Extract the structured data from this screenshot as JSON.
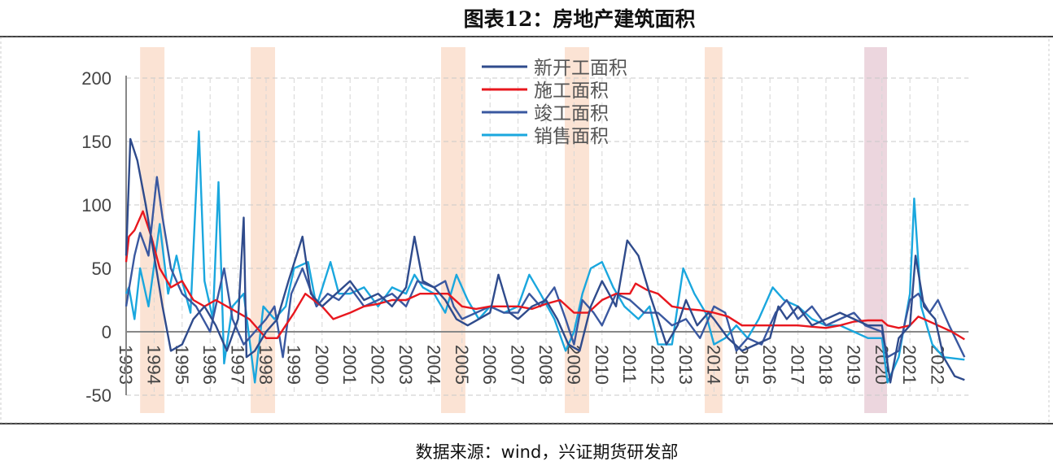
{
  "title": "图表12：房地产建筑面积",
  "source": "数据来源：wind，兴证期货研发部",
  "chart_data": {
    "type": "line",
    "title": "图表12：房地产建筑面积",
    "xlim": [
      1993,
      2022.95
    ],
    "ylim": [
      -50,
      200
    ],
    "yticks": [
      200,
      150,
      100,
      50,
      0,
      -50
    ],
    "xticks": [
      "1993",
      "1994",
      "1995",
      "1996",
      "1997",
      "1998",
      "1999",
      "2000",
      "2001",
      "2002",
      "2003",
      "2004",
      "2005",
      "2006",
      "2007",
      "2008",
      "2009",
      "2010",
      "2011",
      "2012",
      "2013",
      "2014",
      "2015",
      "2016",
      "2017",
      "2018",
      "2019",
      "2020",
      "2021",
      "2022"
    ],
    "grid": true,
    "legend_position": "top-center",
    "shaded_periods": [
      {
        "from": 1993.5,
        "to": 1994.37,
        "color": "#fbe3d4"
      },
      {
        "from": 1997.45,
        "to": 1998.32,
        "color": "#fbe3d4"
      },
      {
        "from": 2004.25,
        "to": 2005.12,
        "color": "#fbe3d4"
      },
      {
        "from": 2008.67,
        "to": 2009.54,
        "color": "#fbe3d4"
      },
      {
        "from": 2013.67,
        "to": 2014.3,
        "color": "#fbe3d4"
      },
      {
        "from": 2019.37,
        "to": 2020.18,
        "color": "#ecd6de"
      }
    ],
    "series": [
      {
        "name": "新开工面积",
        "color": "#2f4b8c",
        "points": [
          [
            1993,
            60
          ],
          [
            1993.15,
            152
          ],
          [
            1993.4,
            135
          ],
          [
            1993.7,
            100
          ],
          [
            1994,
            60
          ],
          [
            1994.3,
            20
          ],
          [
            1994.6,
            -15
          ],
          [
            1995,
            -10
          ],
          [
            1995.4,
            10
          ],
          [
            1995.8,
            20
          ],
          [
            1996.2,
            5
          ],
          [
            1996.6,
            -15
          ],
          [
            1997,
            10
          ],
          [
            1997.2,
            90
          ],
          [
            1997.3,
            -20
          ],
          [
            1997.6,
            -15
          ],
          [
            1998,
            0
          ],
          [
            1998.4,
            10
          ],
          [
            1998.8,
            40
          ],
          [
            1999.3,
            75
          ],
          [
            1999.6,
            30
          ],
          [
            2000,
            20
          ],
          [
            2000.5,
            30
          ],
          [
            2001,
            40
          ],
          [
            2001.5,
            25
          ],
          [
            2002,
            30
          ],
          [
            2002.5,
            20
          ],
          [
            2003,
            35
          ],
          [
            2003.3,
            75
          ],
          [
            2003.6,
            40
          ],
          [
            2004,
            35
          ],
          [
            2004.4,
            25
          ],
          [
            2004.8,
            10
          ],
          [
            2005.2,
            5
          ],
          [
            2005.6,
            10
          ],
          [
            2006,
            15
          ],
          [
            2006.3,
            45
          ],
          [
            2006.7,
            15
          ],
          [
            2007,
            10
          ],
          [
            2007.5,
            20
          ],
          [
            2008,
            25
          ],
          [
            2008.4,
            10
          ],
          [
            2008.8,
            -10
          ],
          [
            2009.2,
            -15
          ],
          [
            2009.6,
            20
          ],
          [
            2010,
            40
          ],
          [
            2010.5,
            20
          ],
          [
            2010.9,
            72
          ],
          [
            2011.3,
            60
          ],
          [
            2011.7,
            30
          ],
          [
            2012,
            10
          ],
          [
            2012.3,
            -10
          ],
          [
            2012.7,
            5
          ],
          [
            2013,
            25
          ],
          [
            2013.4,
            5
          ],
          [
            2013.8,
            15
          ],
          [
            2014,
            10
          ],
          [
            2014.5,
            -5
          ],
          [
            2015,
            -15
          ],
          [
            2015.5,
            -10
          ],
          [
            2016,
            -5
          ],
          [
            2016.3,
            20
          ],
          [
            2016.6,
            10
          ],
          [
            2017,
            20
          ],
          [
            2017.5,
            5
          ],
          [
            2018,
            10
          ],
          [
            2018.5,
            15
          ],
          [
            2019,
            10
          ],
          [
            2019.5,
            5
          ],
          [
            2020,
            5
          ],
          [
            2020.3,
            -40
          ],
          [
            2020.6,
            -5
          ],
          [
            2021,
            5
          ],
          [
            2021.2,
            60
          ],
          [
            2021.5,
            20
          ],
          [
            2021.9,
            10
          ],
          [
            2022.2,
            -20
          ],
          [
            2022.6,
            -35
          ],
          [
            2022.95,
            -38
          ]
        ]
      },
      {
        "name": "施工面积",
        "color": "#e8171e",
        "points": [
          [
            1993,
            55
          ],
          [
            1993.1,
            75
          ],
          [
            1993.3,
            80
          ],
          [
            1993.6,
            95
          ],
          [
            1993.9,
            75
          ],
          [
            1994.2,
            50
          ],
          [
            1994.6,
            35
          ],
          [
            1995,
            40
          ],
          [
            1995.4,
            25
          ],
          [
            1995.8,
            20
          ],
          [
            1996.2,
            25
          ],
          [
            1996.6,
            20
          ],
          [
            1997,
            15
          ],
          [
            1997.4,
            10
          ],
          [
            1997.8,
            0
          ],
          [
            1998,
            -5
          ],
          [
            1998.4,
            -5
          ],
          [
            1998.7,
            5
          ],
          [
            1999,
            15
          ],
          [
            1999.4,
            30
          ],
          [
            2000,
            20
          ],
          [
            2000.4,
            10
          ],
          [
            2001,
            15
          ],
          [
            2001.5,
            20
          ],
          [
            2002,
            22
          ],
          [
            2002.5,
            25
          ],
          [
            2003,
            25
          ],
          [
            2003.5,
            30
          ],
          [
            2004,
            30
          ],
          [
            2004.5,
            30
          ],
          [
            2005,
            20
          ],
          [
            2005.5,
            18
          ],
          [
            2006,
            20
          ],
          [
            2006.5,
            20
          ],
          [
            2007,
            20
          ],
          [
            2007.5,
            18
          ],
          [
            2008,
            22
          ],
          [
            2008.5,
            25
          ],
          [
            2009,
            15
          ],
          [
            2009.5,
            15
          ],
          [
            2010,
            25
          ],
          [
            2010.5,
            30
          ],
          [
            2011,
            30
          ],
          [
            2011.2,
            38
          ],
          [
            2011.6,
            33
          ],
          [
            2012,
            30
          ],
          [
            2012.5,
            20
          ],
          [
            2013,
            18
          ],
          [
            2013.5,
            17
          ],
          [
            2014,
            15
          ],
          [
            2014.5,
            12
          ],
          [
            2015,
            5
          ],
          [
            2015.5,
            5
          ],
          [
            2016,
            5
          ],
          [
            2016.5,
            5
          ],
          [
            2017,
            5
          ],
          [
            2017.5,
            4
          ],
          [
            2018,
            3
          ],
          [
            2018.5,
            5
          ],
          [
            2019,
            8
          ],
          [
            2019.5,
            9
          ],
          [
            2020,
            9
          ],
          [
            2020.2,
            5
          ],
          [
            2020.6,
            3
          ],
          [
            2021,
            5
          ],
          [
            2021.3,
            12
          ],
          [
            2021.7,
            8
          ],
          [
            2022,
            5
          ],
          [
            2022.5,
            0
          ],
          [
            2022.95,
            -6
          ]
        ]
      },
      {
        "name": "竣工面积",
        "color": "#3a58a0",
        "points": [
          [
            1993,
            20
          ],
          [
            1993.3,
            60
          ],
          [
            1993.5,
            78
          ],
          [
            1993.8,
            60
          ],
          [
            1994.1,
            122
          ],
          [
            1994.3,
            90
          ],
          [
            1994.6,
            50
          ],
          [
            1995,
            30
          ],
          [
            1995.5,
            20
          ],
          [
            1996,
            0
          ],
          [
            1996.5,
            50
          ],
          [
            1996.8,
            10
          ],
          [
            1997.2,
            -10
          ],
          [
            1997.6,
            0
          ],
          [
            1998,
            10
          ],
          [
            1998.3,
            20
          ],
          [
            1998.6,
            -20
          ],
          [
            1998.9,
            30
          ],
          [
            1999.3,
            50
          ],
          [
            1999.8,
            20
          ],
          [
            2000.2,
            30
          ],
          [
            2000.6,
            25
          ],
          [
            2001,
            35
          ],
          [
            2001.5,
            20
          ],
          [
            2002,
            25
          ],
          [
            2002.5,
            30
          ],
          [
            2003,
            20
          ],
          [
            2003.4,
            40
          ],
          [
            2004,
            35
          ],
          [
            2004.4,
            40
          ],
          [
            2004.7,
            20
          ],
          [
            2005,
            10
          ],
          [
            2005.5,
            15
          ],
          [
            2006,
            20
          ],
          [
            2006.5,
            15
          ],
          [
            2007,
            15
          ],
          [
            2007.4,
            30
          ],
          [
            2007.8,
            20
          ],
          [
            2008.3,
            35
          ],
          [
            2008.7,
            10
          ],
          [
            2009,
            -10
          ],
          [
            2009.3,
            25
          ],
          [
            2009.7,
            15
          ],
          [
            2010,
            5
          ],
          [
            2010.5,
            30
          ],
          [
            2011,
            25
          ],
          [
            2011.5,
            15
          ],
          [
            2012,
            15
          ],
          [
            2012.5,
            5
          ],
          [
            2013,
            10
          ],
          [
            2013.5,
            -5
          ],
          [
            2014,
            20
          ],
          [
            2014.4,
            15
          ],
          [
            2014.8,
            -15
          ],
          [
            2015.2,
            -5
          ],
          [
            2015.7,
            -10
          ],
          [
            2016.2,
            15
          ],
          [
            2016.6,
            25
          ],
          [
            2017,
            10
          ],
          [
            2017.5,
            20
          ],
          [
            2018,
            5
          ],
          [
            2018.5,
            10
          ],
          [
            2019,
            15
          ],
          [
            2019.4,
            5
          ],
          [
            2020,
            0
          ],
          [
            2020.2,
            -20
          ],
          [
            2020.6,
            -15
          ],
          [
            2021,
            25
          ],
          [
            2021.3,
            30
          ],
          [
            2021.7,
            15
          ],
          [
            2022,
            25
          ],
          [
            2022.4,
            5
          ],
          [
            2022.95,
            -20
          ]
        ]
      },
      {
        "name": "销售面积",
        "color": "#1aa7de",
        "points": [
          [
            1993,
            30
          ],
          [
            1993.1,
            35
          ],
          [
            1993.3,
            10
          ],
          [
            1993.5,
            50
          ],
          [
            1993.8,
            20
          ],
          [
            1994.2,
            85
          ],
          [
            1994.5,
            30
          ],
          [
            1994.8,
            60
          ],
          [
            1995,
            40
          ],
          [
            1995.3,
            15
          ],
          [
            1995.6,
            158
          ],
          [
            1995.8,
            40
          ],
          [
            1996.1,
            10
          ],
          [
            1996.3,
            118
          ],
          [
            1996.5,
            -25
          ],
          [
            1996.8,
            20
          ],
          [
            1997.2,
            30
          ],
          [
            1997.6,
            -40
          ],
          [
            1997.9,
            20
          ],
          [
            1998.3,
            10
          ],
          [
            1998.7,
            20
          ],
          [
            1999,
            50
          ],
          [
            1999.5,
            55
          ],
          [
            1999.8,
            20
          ],
          [
            2000.3,
            55
          ],
          [
            2000.6,
            30
          ],
          [
            2001,
            30
          ],
          [
            2001.5,
            35
          ],
          [
            2002,
            20
          ],
          [
            2002.5,
            35
          ],
          [
            2003,
            30
          ],
          [
            2003.3,
            45
          ],
          [
            2003.6,
            35
          ],
          [
            2004,
            30
          ],
          [
            2004.4,
            15
          ],
          [
            2004.8,
            45
          ],
          [
            2005.2,
            25
          ],
          [
            2005.6,
            10
          ],
          [
            2006,
            20
          ],
          [
            2006.5,
            15
          ],
          [
            2007,
            20
          ],
          [
            2007.4,
            45
          ],
          [
            2007.8,
            30
          ],
          [
            2008.3,
            10
          ],
          [
            2008.7,
            -15
          ],
          [
            2009,
            0
          ],
          [
            2009.3,
            30
          ],
          [
            2009.6,
            50
          ],
          [
            2010,
            55
          ],
          [
            2010.4,
            35
          ],
          [
            2010.8,
            20
          ],
          [
            2011.3,
            10
          ],
          [
            2011.7,
            20
          ],
          [
            2012,
            -10
          ],
          [
            2012.5,
            -10
          ],
          [
            2012.9,
            50
          ],
          [
            2013.3,
            30
          ],
          [
            2013.7,
            15
          ],
          [
            2014,
            -10
          ],
          [
            2014.4,
            -5
          ],
          [
            2014.8,
            5
          ],
          [
            2015.2,
            -5
          ],
          [
            2015.6,
            10
          ],
          [
            2016.1,
            35
          ],
          [
            2016.5,
            25
          ],
          [
            2017,
            20
          ],
          [
            2017.5,
            10
          ],
          [
            2018,
            5
          ],
          [
            2018.5,
            5
          ],
          [
            2019,
            0
          ],
          [
            2019.5,
            -5
          ],
          [
            2020,
            -5
          ],
          [
            2020.2,
            -40
          ],
          [
            2020.6,
            -20
          ],
          [
            2021,
            30
          ],
          [
            2021.15,
            105
          ],
          [
            2021.4,
            20
          ],
          [
            2021.8,
            -10
          ],
          [
            2022.2,
            -20
          ],
          [
            2022.95,
            -22
          ]
        ]
      }
    ]
  }
}
